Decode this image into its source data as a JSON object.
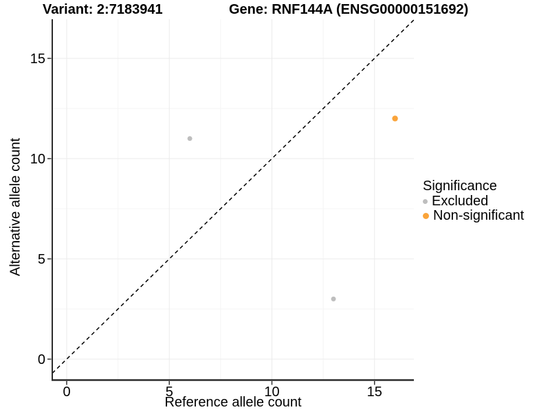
{
  "header": {
    "variant_title": "Variant: 2:7183941",
    "gene_title": "Gene: RNF144A (ENSG00000151692)"
  },
  "chart_data": {
    "type": "scatter",
    "title": "Variant: 2:7183941    Gene: RNF144A (ENSG00000151692)",
    "xlabel": "Reference allele count",
    "ylabel": "Alternative allele count",
    "xlim": [
      -0.7,
      16.9
    ],
    "ylim": [
      -1.05,
      17.0
    ],
    "x_ticks": [
      0,
      5,
      10,
      15
    ],
    "y_ticks": [
      0,
      5,
      10,
      15
    ],
    "minor_ticks": [
      2.5,
      7.5,
      12.5
    ],
    "grid": true,
    "legend_title": "Significance",
    "legend_position": "right",
    "identity_line": {
      "equation": "y = x",
      "style": "dashed",
      "color": "#000000"
    },
    "series": [
      {
        "name": "Excluded",
        "color": "#BEBEBE",
        "point_radius": 3.5,
        "points": [
          [
            6,
            11
          ],
          [
            13,
            3
          ]
        ]
      },
      {
        "name": "Non-significant",
        "color": "#FAA43A",
        "point_radius": 4.2,
        "points": [
          [
            16,
            12
          ]
        ]
      }
    ]
  },
  "legend": {
    "title": "Significance",
    "items": [
      {
        "label": "Excluded",
        "color": "#BEBEBE"
      },
      {
        "label": "Non-significant",
        "color": "#FAA43A"
      }
    ]
  },
  "colors": {
    "grid_major": "#ebebeb",
    "grid_minor": "#f4f4f4",
    "axis_line": "#2b2b2b",
    "tick_mark": "#333333",
    "text": "#000000"
  }
}
